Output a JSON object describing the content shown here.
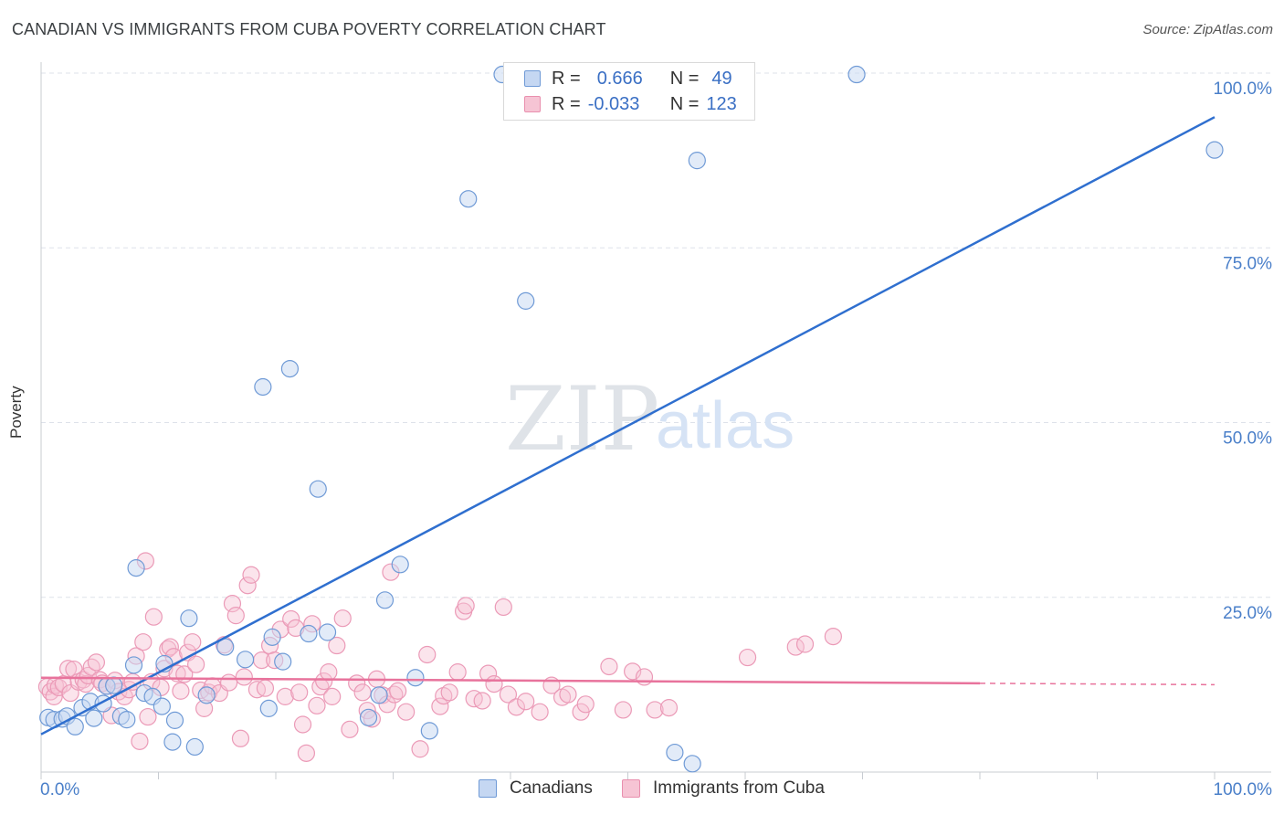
{
  "title": "CANADIAN VS IMMIGRANTS FROM CUBA POVERTY CORRELATION CHART",
  "source": "Source: ZipAtlas.com",
  "watermark": {
    "zip": "ZIP",
    "atlas": "atlas"
  },
  "colors": {
    "blue": "#4a7fc9",
    "blue_line": "#2f6fcf",
    "pink": "#e8739c",
    "pink_line": "#e8739c",
    "blue_fill": "#c5d7f2",
    "pink_fill": "#f6c4d4",
    "grid": "#dde2ea"
  },
  "legend": {
    "rows": [
      {
        "r_label": "R =",
        "r_value": "0.666",
        "n_label": "N =",
        "n_value": "49"
      },
      {
        "r_label": "R =",
        "r_value": "-0.033",
        "n_label": "N =",
        "n_value": "123"
      }
    ]
  },
  "chart_data": {
    "type": "scatter",
    "title": "CANADIAN VS IMMIGRANTS FROM CUBA POVERTY CORRELATION CHART",
    "xlabel": "",
    "ylabel": "Poverty",
    "xlim": [
      0,
      100
    ],
    "ylim": [
      0,
      100
    ],
    "x_tick_labels": [
      "0.0%",
      "100.0%"
    ],
    "y_tick_labels": [
      "25.0%",
      "50.0%",
      "75.0%",
      "100.0%"
    ],
    "y_ticks": [
      25,
      50,
      75,
      100
    ],
    "grid": true,
    "legend_position": "bottom",
    "series": [
      {
        "name": "Canadians",
        "color": "#4a7fc9",
        "r": 0.666,
        "n": 49,
        "trend": {
          "x": [
            0,
            100
          ],
          "y": [
            5.4,
            93.7
          ]
        },
        "points": [
          [
            0.6,
            7.8
          ],
          [
            1.1,
            7.5
          ],
          [
            1.8,
            7.6
          ],
          [
            2.2,
            8
          ],
          [
            2.9,
            6.5
          ],
          [
            3.5,
            9.2
          ],
          [
            4.2,
            10.1
          ],
          [
            4.5,
            7.7
          ],
          [
            5.3,
            9.8
          ],
          [
            5.6,
            12.3
          ],
          [
            6.2,
            12.4
          ],
          [
            6.8,
            8
          ],
          [
            7.3,
            7.5
          ],
          [
            7.9,
            15.3
          ],
          [
            8.1,
            29.2
          ],
          [
            8.8,
            11.3
          ],
          [
            9.5,
            10.8
          ],
          [
            10.3,
            9.4
          ],
          [
            10.5,
            15.5
          ],
          [
            11.2,
            4.3
          ],
          [
            11.4,
            7.4
          ],
          [
            12.6,
            22
          ],
          [
            13.1,
            3.6
          ],
          [
            14.1,
            11
          ],
          [
            15.7,
            17.9
          ],
          [
            17.4,
            16.1
          ],
          [
            18.9,
            55.1
          ],
          [
            19.4,
            9.1
          ],
          [
            19.7,
            19.3
          ],
          [
            20.6,
            15.8
          ],
          [
            21.2,
            57.7
          ],
          [
            22.8,
            19.8
          ],
          [
            23.6,
            40.5
          ],
          [
            24.4,
            20
          ],
          [
            27.9,
            7.8
          ],
          [
            28.8,
            11
          ],
          [
            29.3,
            24.6
          ],
          [
            30.6,
            29.7
          ],
          [
            31.9,
            13.5
          ],
          [
            33.1,
            5.9
          ],
          [
            36.4,
            82
          ],
          [
            39.3,
            99.8
          ],
          [
            41.3,
            67.4
          ],
          [
            54,
            2.8
          ],
          [
            55.5,
            1.2
          ],
          [
            55.9,
            87.5
          ],
          [
            69.5,
            99.8
          ],
          [
            100,
            89
          ]
        ]
      },
      {
        "name": "Immigrants from Cuba",
        "color": "#e8739c",
        "r": -0.033,
        "n": 123,
        "trend": {
          "x": [
            0,
            80
          ],
          "y": [
            13.5,
            12.7
          ]
        },
        "trend_dashed": {
          "x": [
            80,
            100
          ],
          "y": [
            12.7,
            12.5
          ]
        },
        "points": [
          [
            0.5,
            12.2
          ],
          [
            0.8,
            11.5
          ],
          [
            1.1,
            10.8
          ],
          [
            1.2,
            12.4
          ],
          [
            1.5,
            12.1
          ],
          [
            1.9,
            12.6
          ],
          [
            2.3,
            14.8
          ],
          [
            2.5,
            11.3
          ],
          [
            2.8,
            14.7
          ],
          [
            3.2,
            12.9
          ],
          [
            3.6,
            13.2
          ],
          [
            3.8,
            12.6
          ],
          [
            4,
            13.8
          ],
          [
            4.3,
            15
          ],
          [
            4.7,
            15.7
          ],
          [
            5,
            13.2
          ],
          [
            5.2,
            12.7
          ],
          [
            5.6,
            12.3
          ],
          [
            6,
            8.1
          ],
          [
            6.3,
            13.1
          ],
          [
            6.6,
            11.5
          ],
          [
            7.1,
            10.8
          ],
          [
            7.5,
            11.8
          ],
          [
            7.8,
            12.9
          ],
          [
            8.1,
            16.6
          ],
          [
            8.4,
            4.4
          ],
          [
            8.7,
            18.6
          ],
          [
            8.9,
            30.2
          ],
          [
            9.1,
            7.9
          ],
          [
            9.4,
            12.9
          ],
          [
            9.6,
            22.2
          ],
          [
            10.2,
            12.1
          ],
          [
            10.5,
            14.8
          ],
          [
            10.8,
            17.6
          ],
          [
            11,
            17.9
          ],
          [
            11.3,
            16.5
          ],
          [
            11.6,
            14.1
          ],
          [
            11.9,
            11.6
          ],
          [
            12.2,
            14
          ],
          [
            12.5,
            17.1
          ],
          [
            12.9,
            18.6
          ],
          [
            13.2,
            15.4
          ],
          [
            13.6,
            11.7
          ],
          [
            13.9,
            9.1
          ],
          [
            14.3,
            11.4
          ],
          [
            14.6,
            12.3
          ],
          [
            15.2,
            11.3
          ],
          [
            15.6,
            18.2
          ],
          [
            16,
            12.8
          ],
          [
            16.3,
            24.1
          ],
          [
            16.6,
            22.4
          ],
          [
            17,
            4.8
          ],
          [
            17.3,
            13.6
          ],
          [
            17.6,
            26.7
          ],
          [
            17.9,
            28.2
          ],
          [
            18.4,
            11.8
          ],
          [
            18.8,
            16
          ],
          [
            19.1,
            12
          ],
          [
            19.5,
            18.1
          ],
          [
            19.9,
            16
          ],
          [
            20.4,
            20.4
          ],
          [
            20.8,
            10.8
          ],
          [
            21.3,
            21.9
          ],
          [
            21.7,
            20.6
          ],
          [
            22,
            11.4
          ],
          [
            22.3,
            6.8
          ],
          [
            22.6,
            2.7
          ],
          [
            23.1,
            21.2
          ],
          [
            23.5,
            9.5
          ],
          [
            23.8,
            12.2
          ],
          [
            24.1,
            13
          ],
          [
            24.5,
            14.3
          ],
          [
            24.8,
            10.8
          ],
          [
            25.2,
            18.1
          ],
          [
            25.7,
            22
          ],
          [
            26.3,
            6.1
          ],
          [
            26.9,
            12.7
          ],
          [
            27.4,
            11.4
          ],
          [
            27.8,
            8.8
          ],
          [
            28.2,
            7.6
          ],
          [
            28.6,
            13.3
          ],
          [
            29.1,
            11
          ],
          [
            29.5,
            9.7
          ],
          [
            29.8,
            28.6
          ],
          [
            30.1,
            11.1
          ],
          [
            30.4,
            11.6
          ],
          [
            31.1,
            8.6
          ],
          [
            32.3,
            3.3
          ],
          [
            32.9,
            16.8
          ],
          [
            34,
            9.4
          ],
          [
            34.3,
            10.9
          ],
          [
            34.8,
            11.4
          ],
          [
            35.5,
            14.3
          ],
          [
            36,
            23
          ],
          [
            36.2,
            23.8
          ],
          [
            36.9,
            10.5
          ],
          [
            37.6,
            10.2
          ],
          [
            38.1,
            14.1
          ],
          [
            38.6,
            12.6
          ],
          [
            39.4,
            23.6
          ],
          [
            39.8,
            11.1
          ],
          [
            40.5,
            9.3
          ],
          [
            41.3,
            10.1
          ],
          [
            42.5,
            8.6
          ],
          [
            43.5,
            12.4
          ],
          [
            44.4,
            10.7
          ],
          [
            44.9,
            11.1
          ],
          [
            46,
            8.6
          ],
          [
            46.4,
            9.7
          ],
          [
            48.4,
            15.1
          ],
          [
            49.6,
            8.9
          ],
          [
            50.4,
            14.4
          ],
          [
            51.4,
            13.6
          ],
          [
            52.3,
            8.9
          ],
          [
            53.5,
            9.2
          ],
          [
            60.2,
            16.4
          ],
          [
            64.3,
            17.9
          ],
          [
            65.1,
            18.3
          ],
          [
            67.5,
            19.4
          ]
        ]
      }
    ]
  },
  "bottom_legend": {
    "items": [
      "Canadians",
      "Immigrants from Cuba"
    ]
  }
}
